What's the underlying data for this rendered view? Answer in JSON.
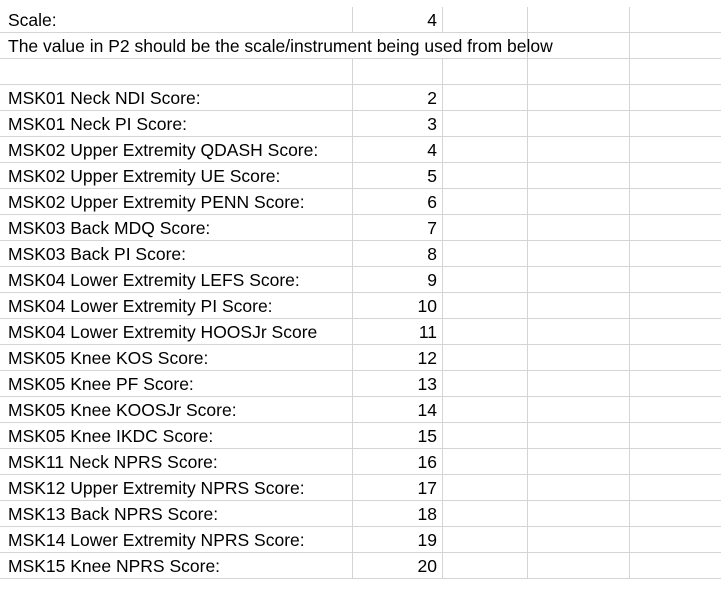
{
  "sheet": {
    "scale_label": "Scale:",
    "scale_value": "4",
    "note": "The value in P2 should be the scale/instrument being used from below",
    "scores": [
      {
        "label": "MSK01 Neck NDI Score:",
        "value": "2"
      },
      {
        "label": "MSK01 Neck PI Score:",
        "value": "3"
      },
      {
        "label": "MSK02 Upper Extremity QDASH Score:",
        "value": "4"
      },
      {
        "label": "MSK02 Upper Extremity UE Score:",
        "value": "5"
      },
      {
        "label": "MSK02 Upper Extremity PENN Score:",
        "value": "6"
      },
      {
        "label": "MSK03 Back MDQ Score:",
        "value": "7"
      },
      {
        "label": "MSK03 Back PI Score:",
        "value": "8"
      },
      {
        "label": "MSK04 Lower Extremity LEFS Score:",
        "value": "9"
      },
      {
        "label": "MSK04 Lower Extremity PI Score:",
        "value": "10"
      },
      {
        "label": "MSK04 Lower Extremity HOOSJr Score",
        "value": "11"
      },
      {
        "label": "MSK05 Knee KOS Score:",
        "value": "12"
      },
      {
        "label": "MSK05 Knee PF Score:",
        "value": "13"
      },
      {
        "label": "MSK05 Knee KOOSJr Score:",
        "value": "14"
      },
      {
        "label": "MSK05 Knee IKDC Score:",
        "value": "15"
      },
      {
        "label": "MSK11 Neck NPRS Score:",
        "value": "16"
      },
      {
        "label": "MSK12 Upper Extremity NPRS Score:",
        "value": "17"
      },
      {
        "label": "MSK13 Back NPRS Score:",
        "value": "18"
      },
      {
        "label": "MSK14 Lower Extremity NPRS Score:",
        "value": "19"
      },
      {
        "label": "MSK15 Knee NPRS Score:",
        "value": "20"
      }
    ]
  }
}
